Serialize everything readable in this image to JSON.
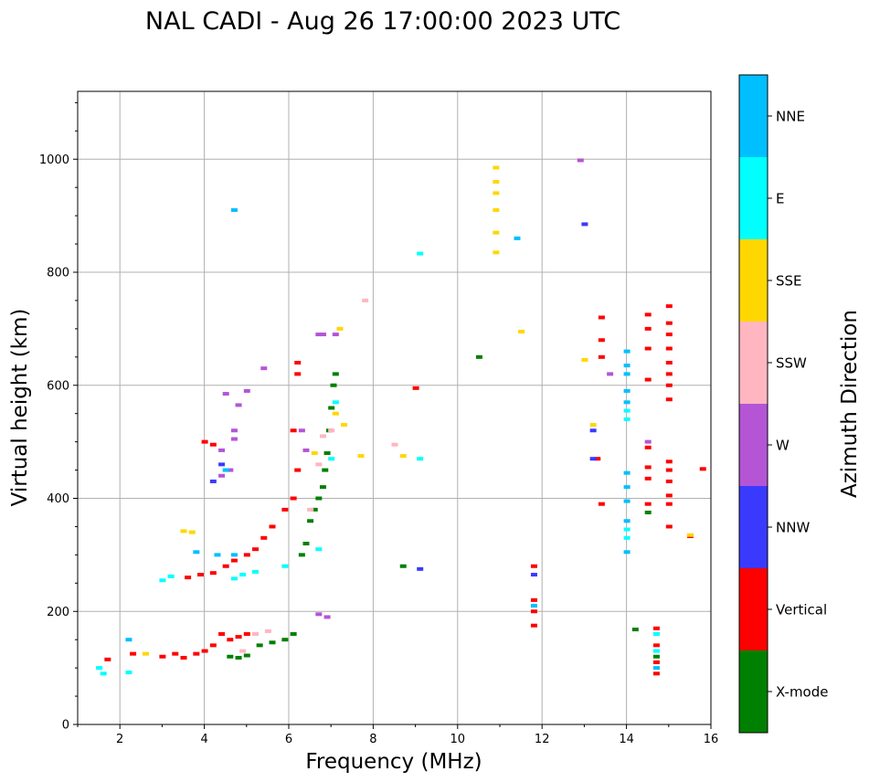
{
  "chart_data": {
    "type": "scatter",
    "title": "NAL CADI - Aug 26 17:00:00 2023 UTC",
    "xlabel": "Frequency (MHz)",
    "ylabel": "Virtual height (km)",
    "xlim": [
      1,
      16
    ],
    "ylim": [
      0,
      1120
    ],
    "xticks": [
      2,
      4,
      6,
      8,
      10,
      12,
      14,
      16
    ],
    "yticks": [
      0,
      200,
      400,
      600,
      800,
      1000
    ],
    "grid": true,
    "colorbar": {
      "label": "Azimuth Direction",
      "categories": [
        {
          "name": "X-mode",
          "color": "#008000"
        },
        {
          "name": "Vertical",
          "color": "#ff0000"
        },
        {
          "name": "NNW",
          "color": "#3a3aff"
        },
        {
          "name": "W",
          "color": "#b455d6"
        },
        {
          "name": "SSW",
          "color": "#ffb6c1"
        },
        {
          "name": "SSE",
          "color": "#ffd700"
        },
        {
          "name": "E",
          "color": "#00ffff"
        },
        {
          "name": "NNE",
          "color": "#00bfff"
        }
      ]
    },
    "series": [
      {
        "name": "X-mode",
        "points": [
          [
            4.6,
            120
          ],
          [
            4.8,
            118
          ],
          [
            5.0,
            122
          ],
          [
            5.3,
            140
          ],
          [
            5.6,
            145
          ],
          [
            5.9,
            150
          ],
          [
            6.1,
            160
          ],
          [
            6.3,
            300
          ],
          [
            6.4,
            320
          ],
          [
            6.5,
            360
          ],
          [
            6.6,
            380
          ],
          [
            6.7,
            400
          ],
          [
            6.8,
            420
          ],
          [
            6.85,
            450
          ],
          [
            6.9,
            480
          ],
          [
            6.95,
            520
          ],
          [
            7.0,
            560
          ],
          [
            7.05,
            600
          ],
          [
            7.1,
            620
          ],
          [
            10.5,
            650
          ],
          [
            14.2,
            168
          ],
          [
            14.5,
            375
          ],
          [
            14.7,
            120
          ],
          [
            8.7,
            280
          ]
        ]
      },
      {
        "name": "Vertical",
        "points": [
          [
            1.7,
            115
          ],
          [
            2.3,
            125
          ],
          [
            3.0,
            120
          ],
          [
            3.3,
            125
          ],
          [
            3.5,
            118
          ],
          [
            3.8,
            125
          ],
          [
            4.0,
            130
          ],
          [
            4.2,
            140
          ],
          [
            4.4,
            160
          ],
          [
            4.6,
            150
          ],
          [
            4.8,
            155
          ],
          [
            5.0,
            160
          ],
          [
            3.6,
            260
          ],
          [
            3.9,
            265
          ],
          [
            4.2,
            268
          ],
          [
            4.5,
            280
          ],
          [
            4.7,
            290
          ],
          [
            5.0,
            300
          ],
          [
            5.2,
            310
          ],
          [
            5.4,
            330
          ],
          [
            5.6,
            350
          ],
          [
            5.9,
            380
          ],
          [
            6.1,
            400
          ],
          [
            6.2,
            450
          ],
          [
            6.1,
            520
          ],
          [
            6.2,
            620
          ],
          [
            6.2,
            640
          ],
          [
            4.0,
            500
          ],
          [
            4.2,
            495
          ],
          [
            9.0,
            595
          ],
          [
            11.8,
            220
          ],
          [
            11.8,
            200
          ],
          [
            11.8,
            175
          ],
          [
            11.8,
            280
          ],
          [
            13.4,
            720
          ],
          [
            13.4,
            680
          ],
          [
            13.4,
            650
          ],
          [
            13.3,
            470
          ],
          [
            13.4,
            390
          ],
          [
            14.5,
            725
          ],
          [
            14.5,
            700
          ],
          [
            14.5,
            665
          ],
          [
            14.5,
            610
          ],
          [
            14.5,
            490
          ],
          [
            14.5,
            455
          ],
          [
            14.5,
            435
          ],
          [
            14.5,
            390
          ],
          [
            14.7,
            170
          ],
          [
            14.7,
            140
          ],
          [
            14.7,
            110
          ],
          [
            14.7,
            90
          ],
          [
            15.0,
            740
          ],
          [
            15.0,
            710
          ],
          [
            15.0,
            690
          ],
          [
            15.0,
            665
          ],
          [
            15.0,
            640
          ],
          [
            15.0,
            620
          ],
          [
            15.0,
            600
          ],
          [
            15.0,
            575
          ],
          [
            15.0,
            465
          ],
          [
            15.0,
            450
          ],
          [
            15.0,
            430
          ],
          [
            15.0,
            405
          ],
          [
            15.0,
            390
          ],
          [
            15.0,
            350
          ],
          [
            15.5,
            333
          ],
          [
            15.8,
            452
          ]
        ]
      },
      {
        "name": "NNW",
        "points": [
          [
            4.4,
            460
          ],
          [
            4.2,
            430
          ],
          [
            13.0,
            885
          ],
          [
            13.2,
            520
          ],
          [
            13.2,
            470
          ],
          [
            9.1,
            275
          ],
          [
            11.8,
            265
          ]
        ]
      },
      {
        "name": "W",
        "points": [
          [
            4.5,
            585
          ],
          [
            4.8,
            565
          ],
          [
            4.7,
            520
          ],
          [
            4.7,
            505
          ],
          [
            4.4,
            485
          ],
          [
            4.4,
            440
          ],
          [
            4.6,
            450
          ],
          [
            5.0,
            590
          ],
          [
            5.4,
            630
          ],
          [
            6.7,
            690
          ],
          [
            6.8,
            690
          ],
          [
            7.1,
            690
          ],
          [
            6.3,
            520
          ],
          [
            6.4,
            485
          ],
          [
            6.7,
            195
          ],
          [
            6.9,
            190
          ],
          [
            12.9,
            998
          ],
          [
            13.6,
            620
          ],
          [
            14.5,
            500
          ]
        ]
      },
      {
        "name": "SSW",
        "points": [
          [
            5.2,
            160
          ],
          [
            5.5,
            165
          ],
          [
            4.9,
            130
          ],
          [
            6.5,
            380
          ],
          [
            6.7,
            460
          ],
          [
            6.8,
            510
          ],
          [
            7.0,
            520
          ],
          [
            8.5,
            495
          ],
          [
            7.8,
            750
          ]
        ]
      },
      {
        "name": "SSE",
        "points": [
          [
            2.6,
            125
          ],
          [
            3.5,
            342
          ],
          [
            3.7,
            340
          ],
          [
            10.9,
            985
          ],
          [
            10.9,
            960
          ],
          [
            10.9,
            940
          ],
          [
            10.9,
            910
          ],
          [
            10.9,
            870
          ],
          [
            10.9,
            835
          ],
          [
            11.5,
            695
          ],
          [
            7.2,
            700
          ],
          [
            7.1,
            550
          ],
          [
            7.3,
            530
          ],
          [
            7.7,
            475
          ],
          [
            8.7,
            475
          ],
          [
            13.0,
            645
          ],
          [
            13.2,
            530
          ],
          [
            15.5,
            335
          ],
          [
            6.6,
            480
          ]
        ]
      },
      {
        "name": "E",
        "points": [
          [
            1.5,
            100
          ],
          [
            1.6,
            90
          ],
          [
            2.2,
            92
          ],
          [
            3.0,
            255
          ],
          [
            3.2,
            262
          ],
          [
            4.7,
            258
          ],
          [
            4.9,
            265
          ],
          [
            5.2,
            270
          ],
          [
            5.9,
            280
          ],
          [
            6.7,
            310
          ],
          [
            7.0,
            470
          ],
          [
            7.1,
            570
          ],
          [
            9.1,
            470
          ],
          [
            9.1,
            833
          ],
          [
            14.0,
            555
          ],
          [
            14.0,
            540
          ],
          [
            14.0,
            345
          ],
          [
            14.0,
            330
          ],
          [
            14.7,
            160
          ],
          [
            14.7,
            130
          ]
        ]
      },
      {
        "name": "NNE",
        "points": [
          [
            2.2,
            150
          ],
          [
            3.8,
            305
          ],
          [
            4.3,
            300
          ],
          [
            4.7,
            300
          ],
          [
            4.7,
            910
          ],
          [
            11.4,
            860
          ],
          [
            11.8,
            210
          ],
          [
            14.0,
            660
          ],
          [
            14.0,
            635
          ],
          [
            14.0,
            620
          ],
          [
            14.0,
            590
          ],
          [
            14.0,
            570
          ],
          [
            14.0,
            445
          ],
          [
            14.0,
            420
          ],
          [
            14.0,
            395
          ],
          [
            14.0,
            360
          ],
          [
            14.0,
            305
          ],
          [
            14.7,
            100
          ],
          [
            4.5,
            450
          ]
        ]
      }
    ]
  }
}
